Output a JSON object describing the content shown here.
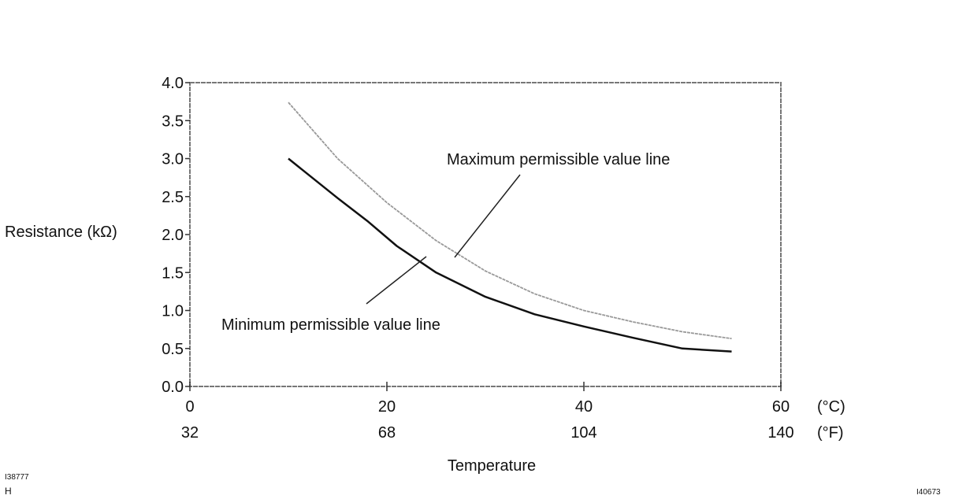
{
  "chart_data": {
    "type": "line",
    "title": "",
    "xlabel": "Temperature",
    "ylabel": "Resistance (kΩ)",
    "xlim": [
      0,
      60
    ],
    "ylim": [
      0,
      4.0
    ],
    "grid": false,
    "x_ticks_c": [
      "0",
      "20",
      "40",
      "60"
    ],
    "x_ticks_f": [
      "32",
      "68",
      "104",
      "140"
    ],
    "x_unit_c": "(°C)",
    "x_unit_f": "(°F)",
    "y_ticks": [
      "0.0",
      "0.5",
      "1.0",
      "1.5",
      "2.0",
      "2.5",
      "3.0",
      "3.5",
      "4.0"
    ],
    "series": [
      {
        "name": "Maximum permissible value line",
        "color": "#999999",
        "x": [
          10,
          15,
          20,
          25,
          30,
          35,
          40,
          45,
          50,
          55
        ],
        "y": [
          3.74,
          3.0,
          2.42,
          1.92,
          1.52,
          1.22,
          1.0,
          0.85,
          0.72,
          0.63
        ]
      },
      {
        "name": "Minimum permissible value line",
        "color": "#111111",
        "x": [
          10,
          15,
          18,
          21,
          25,
          30,
          35,
          40,
          45,
          50,
          55
        ],
        "y": [
          3.0,
          2.48,
          2.18,
          1.85,
          1.5,
          1.18,
          0.95,
          0.79,
          0.64,
          0.5,
          0.46
        ]
      }
    ],
    "annotations": [
      "Maximum permissible value line",
      "Minimum permissible value line"
    ]
  },
  "footer": {
    "left_code": "I38777",
    "left_mark": "H",
    "right_code": "I40673"
  }
}
